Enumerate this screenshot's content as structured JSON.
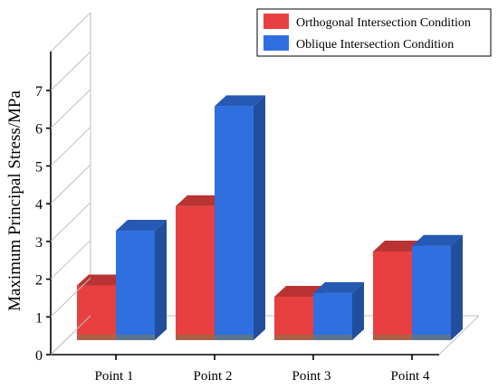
{
  "chart_data": {
    "type": "bar",
    "categories": [
      "Point 1",
      "Point 2",
      "Point 3",
      "Point 4"
    ],
    "series": [
      {
        "name": "Orthogonal Intersection Condition",
        "values": [
          1.45,
          3.55,
          1.15,
          2.35
        ],
        "color": "#e84040"
      },
      {
        "name": "Oblique Intersection Condition",
        "values": [
          2.9,
          6.2,
          1.25,
          2.5
        ],
        "color": "#2f6fe0"
      }
    ],
    "title": "",
    "xlabel": "",
    "ylabel": "Maximum Principal Stress/MPa",
    "ylim": [
      0,
      7
    ],
    "yticks": [
      "0",
      "1",
      "2",
      "3",
      "4",
      "5",
      "6",
      "7"
    ],
    "grid": false,
    "legend_position": "top-right",
    "style": "3d-bar"
  }
}
